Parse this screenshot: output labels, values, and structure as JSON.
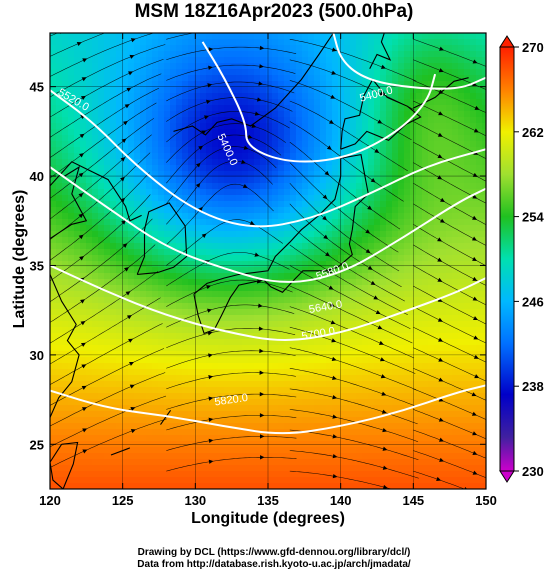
{
  "title": "MSM 18Z16Apr2023 (500.0hPa)",
  "x_axis": {
    "label": "Longitude (degrees)",
    "range": [
      120,
      150
    ],
    "ticks": [
      "120",
      "125",
      "130",
      "135",
      "140",
      "145",
      "150"
    ],
    "tick_values": [
      120,
      125,
      130,
      135,
      140,
      145,
      150
    ]
  },
  "y_axis": {
    "label": "Latitude  (degrees)",
    "range": [
      22.5,
      48
    ],
    "ticks": [
      "25",
      "30",
      "35",
      "40",
      "45"
    ],
    "tick_values": [
      25,
      30,
      35,
      40,
      45
    ]
  },
  "colorbar": {
    "ticks": [
      "230",
      "238",
      "246",
      "254",
      "262",
      "270"
    ],
    "tick_values": [
      230,
      238,
      246,
      254,
      262,
      270
    ],
    "range": [
      230,
      270
    ],
    "colors": {
      "230": "#cc00cc",
      "234": "#3b20a0",
      "238": "#0000c8",
      "242": "#0070ff",
      "246": "#00b8ff",
      "250": "#00e0b0",
      "254": "#20c020",
      "258": "#a0e030",
      "262": "#f0f000",
      "266": "#ff8000",
      "270": "#ff2000"
    }
  },
  "contours": [
    {
      "label": "5400.0",
      "level": 5400,
      "points": [
        [
          130.5,
          47.5
        ],
        [
          132,
          45.5
        ],
        [
          133.5,
          43
        ],
        [
          133.5,
          41.6
        ],
        [
          136.5,
          40.7
        ],
        [
          140.5,
          41.0
        ],
        [
          144,
          42.5
        ],
        [
          146,
          44.2
        ],
        [
          146.5,
          45.7
        ]
      ]
    },
    {
      "label": "5400.0",
      "level": 5400,
      "points": [
        [
          139.5,
          48
        ],
        [
          140.0,
          46.5
        ],
        [
          141.5,
          45.5
        ],
        [
          144,
          45.0
        ],
        [
          148,
          44.8
        ],
        [
          150,
          45.5
        ]
      ]
    },
    {
      "label": "5580.0",
      "level": 5580,
      "points": [
        [
          120,
          40.5
        ],
        [
          124,
          38.2
        ],
        [
          128,
          36.0
        ],
        [
          132,
          34.8
        ],
        [
          136,
          33.9
        ],
        [
          140,
          34.5
        ],
        [
          144,
          36.4
        ],
        [
          148,
          38.5
        ],
        [
          150,
          39.3
        ]
      ]
    },
    {
      "label": "5700.0",
      "level": 5700,
      "points": [
        [
          120,
          35.0
        ],
        [
          124,
          33.5
        ],
        [
          128,
          32.2
        ],
        [
          132,
          31.3
        ],
        [
          136,
          30.7
        ],
        [
          140,
          31.2
        ],
        [
          144,
          32.3
        ],
        [
          148,
          33.5
        ],
        [
          150,
          34.3
        ]
      ]
    },
    {
      "label": "5820.0",
      "level": 5820,
      "points": [
        [
          120,
          28.0
        ],
        [
          124,
          27.0
        ],
        [
          128,
          26.6
        ],
        [
          132,
          26.0
        ],
        [
          136,
          25.5
        ],
        [
          140,
          26.0
        ],
        [
          144,
          26.8
        ],
        [
          148,
          27.9
        ],
        [
          150,
          28.3
        ]
      ]
    },
    {
      "label": "5520.0",
      "level": 5520,
      "points": [
        [
          120,
          44.8
        ],
        [
          123,
          43.0
        ],
        [
          126,
          40.5
        ],
        [
          130,
          38.0
        ],
        [
          134,
          37.0
        ],
        [
          138,
          37.6
        ],
        [
          142,
          39.0
        ],
        [
          146,
          40.6
        ],
        [
          150,
          41.5
        ]
      ]
    }
  ],
  "contour_labels": [
    {
      "text": "5400.0",
      "lon": 132.0,
      "lat": 41.4,
      "rot": 65
    },
    {
      "text": "5400.0",
      "lon": 142.5,
      "lat": 44.4,
      "rot": -15
    },
    {
      "text": "5520.0",
      "lon": 121.5,
      "lat": 44.1,
      "rot": 30
    },
    {
      "text": "5580.0",
      "lon": 139.5,
      "lat": 34.5,
      "rot": -20
    },
    {
      "text": "5640.0",
      "lon": 139.0,
      "lat": 32.5,
      "rot": -10
    },
    {
      "text": "5700.0",
      "lon": 138.5,
      "lat": 31.0,
      "rot": -10
    },
    {
      "text": "5820.0",
      "lon": 132.5,
      "lat": 27.3,
      "rot": -8
    }
  ],
  "field": {
    "description_codes": "T",
    "low_center": [
      132.5,
      41.0
    ]
  }
}
